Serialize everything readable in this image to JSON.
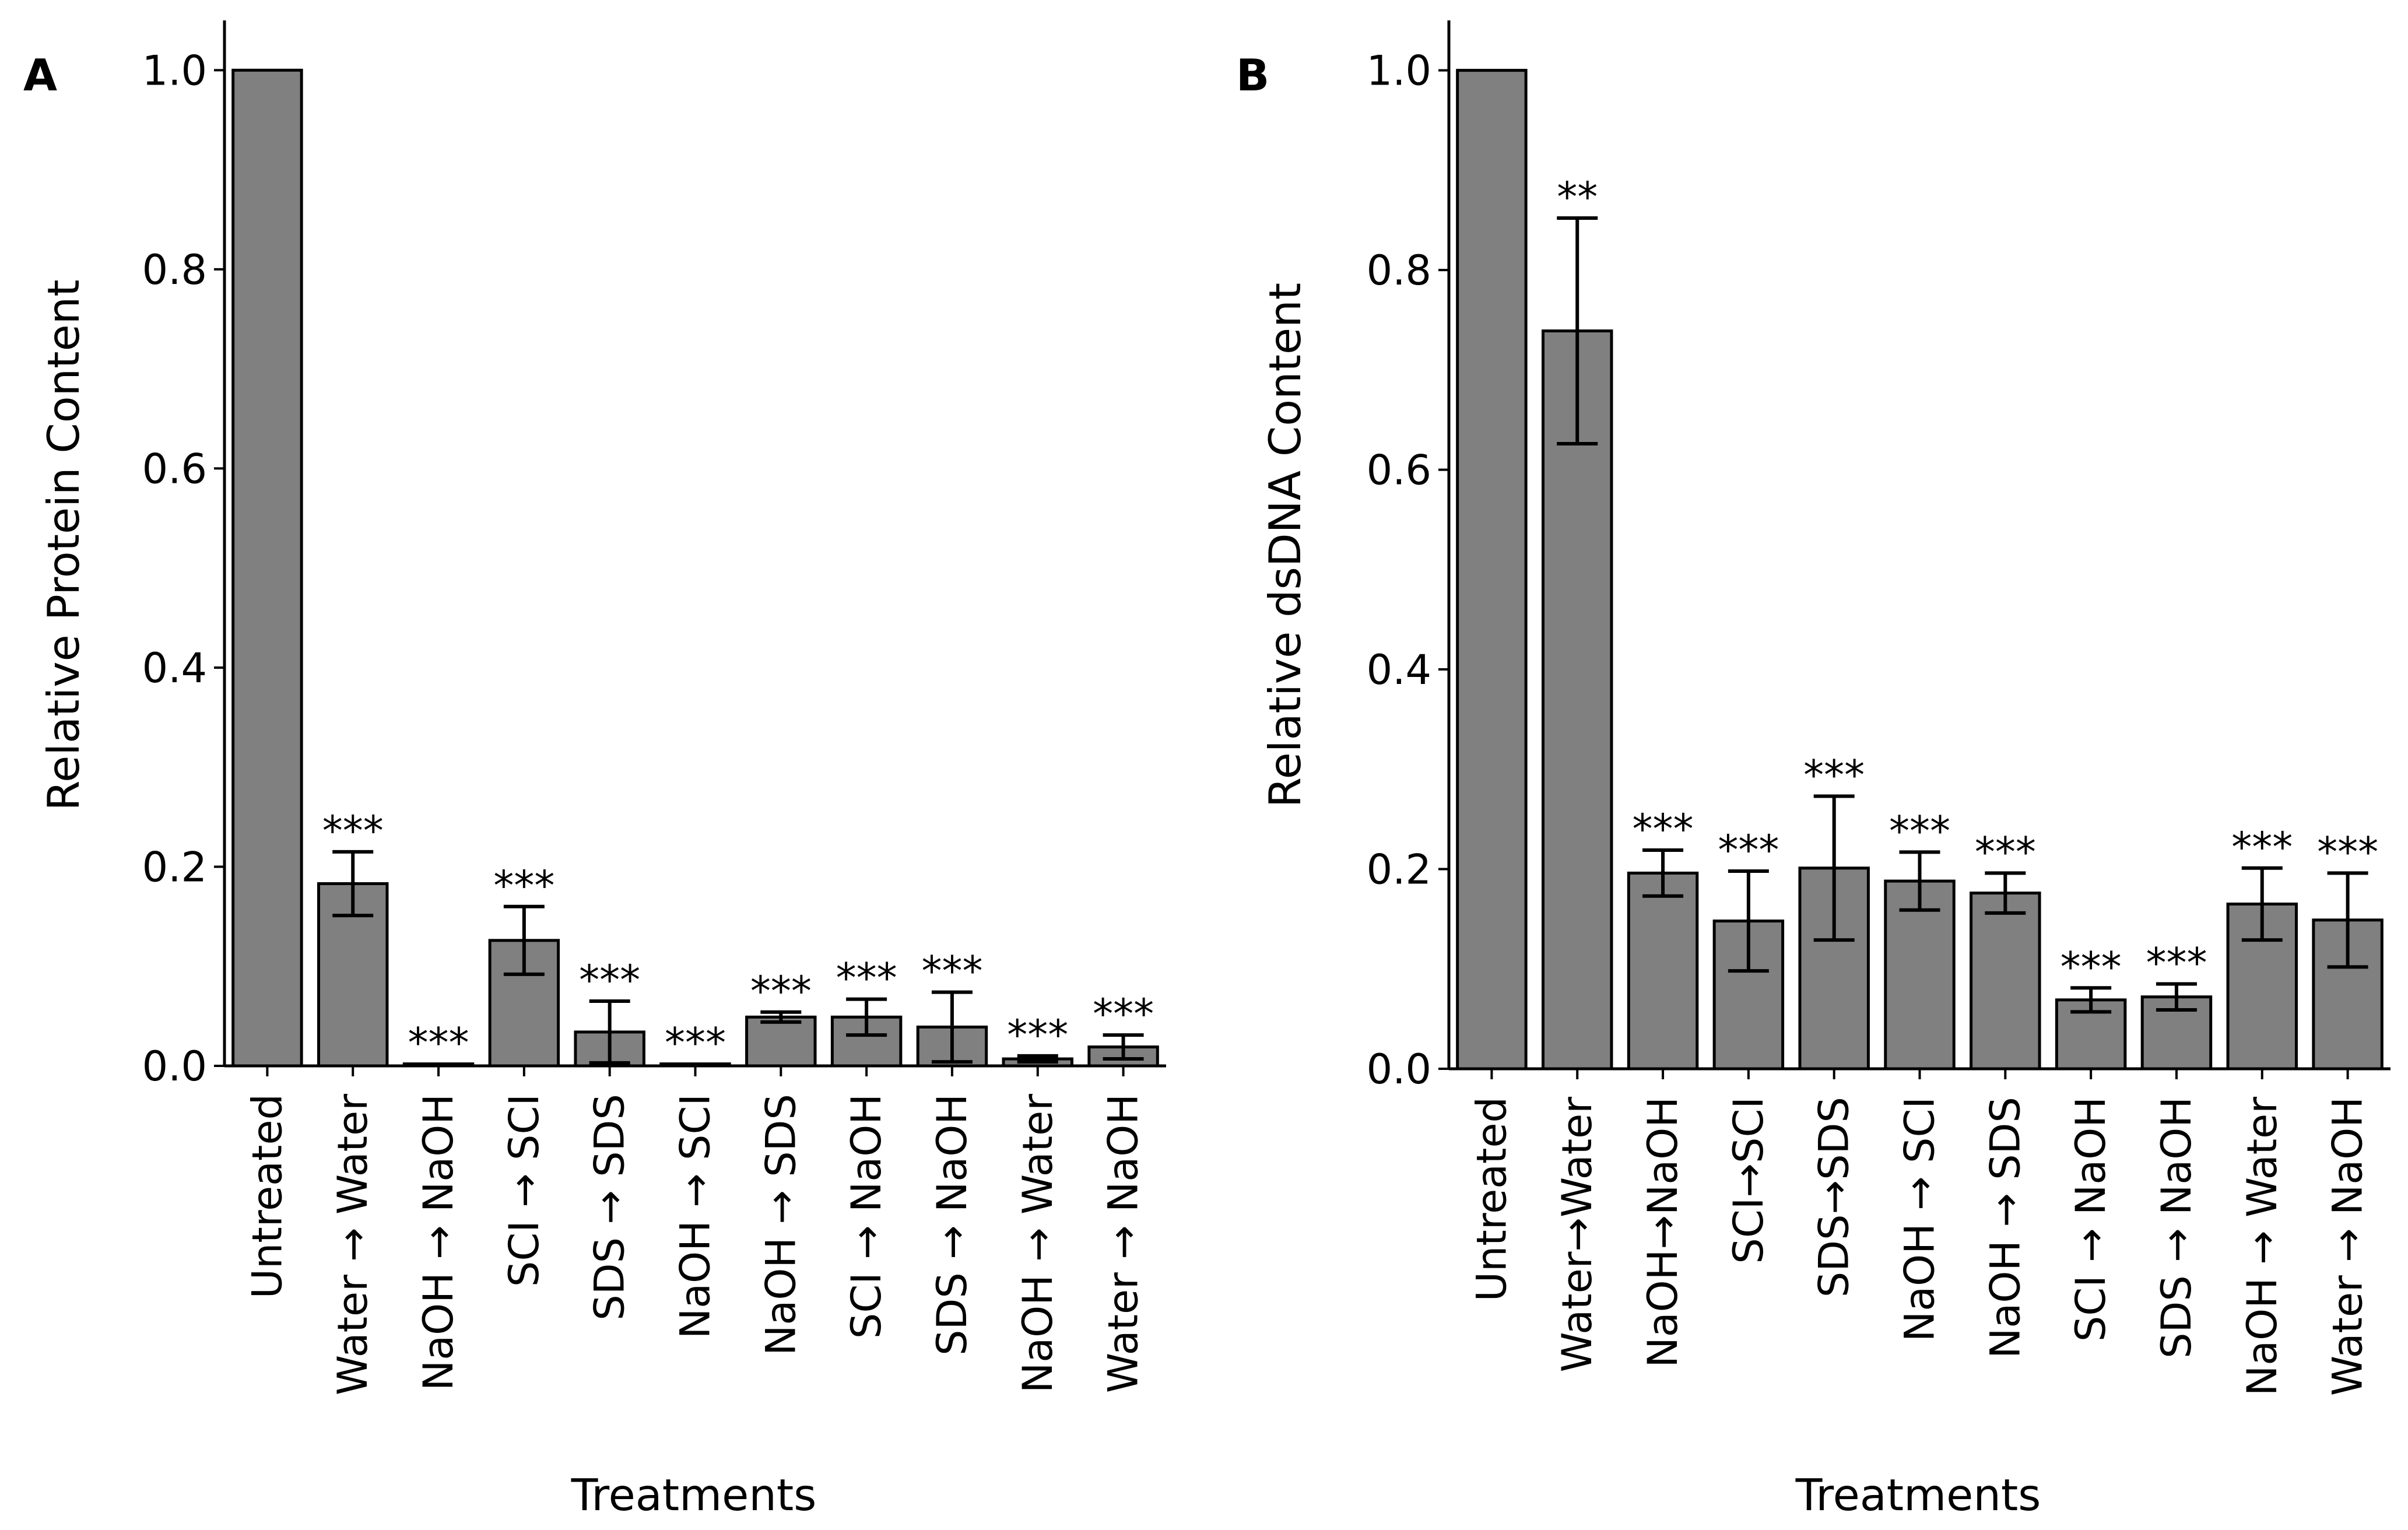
{
  "chart_data": [
    {
      "type": "bar",
      "panel_label": "A",
      "xlabel": "Treatments",
      "ylabel": "Relative Protein Content",
      "ylim": [
        0,
        1.05
      ],
      "yticks": [
        "0.0",
        "0.2",
        "0.4",
        "0.6",
        "0.8",
        "1.0"
      ],
      "bar_color": "#808080",
      "categories": [
        "Untreated",
        "Water → Water",
        "NaOH → NaOH",
        "SCI → SCI",
        "SDS → SDS",
        "NaOH → SCI",
        "NaOH → SDS",
        "SCI → NaOH",
        "SDS → NaOH",
        "NaOH → Water",
        "Water → NaOH"
      ],
      "values": [
        1.0,
        0.183,
        0.002,
        0.126,
        0.034,
        0.002,
        0.049,
        0.049,
        0.039,
        0.007,
        0.019
      ],
      "errors": [
        0.0,
        0.032,
        0.0,
        0.034,
        0.031,
        0.0,
        0.005,
        0.018,
        0.035,
        0.003,
        0.012
      ],
      "significance": [
        "",
        "***",
        "***",
        "***",
        "***",
        "***",
        "***",
        "***",
        "***",
        "***",
        "***"
      ]
    },
    {
      "type": "bar",
      "panel_label": "B",
      "xlabel": "Treatments",
      "ylabel": "Relative dsDNA Content",
      "ylim": [
        0,
        1.05
      ],
      "yticks": [
        "0.0",
        "0.2",
        "0.4",
        "0.6",
        "0.8",
        "1.0"
      ],
      "bar_color": "#808080",
      "categories": [
        "Untreated",
        "Water→Water",
        "NaOH→NaOH",
        "SCI→SCI",
        "SDS→SDS",
        "NaOH → SCI",
        "NaOH → SDS",
        "SCI → NaOH",
        "SDS → NaOH",
        "NaOH → Water",
        "Water → NaOH"
      ],
      "values": [
        1.0,
        0.739,
        0.196,
        0.148,
        0.201,
        0.188,
        0.176,
        0.069,
        0.072,
        0.165,
        0.149
      ],
      "errors": [
        0.0,
        0.113,
        0.023,
        0.05,
        0.072,
        0.029,
        0.02,
        0.012,
        0.013,
        0.036,
        0.047
      ],
      "significance": [
        "",
        "**",
        "***",
        "***",
        "***",
        "***",
        "***",
        "***",
        "***",
        "***",
        "***"
      ]
    }
  ]
}
